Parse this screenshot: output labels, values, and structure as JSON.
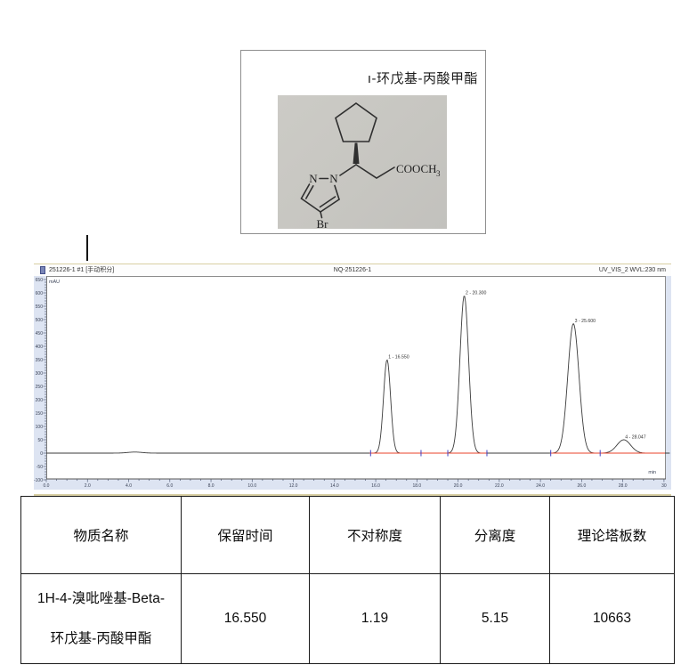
{
  "structure_box": {
    "title": "ı-环戊基-丙酸甲酯",
    "atoms": {
      "n1": "N",
      "n2": "N",
      "br": "Br",
      "ester": "COOCH",
      "ester_sub": "3"
    }
  },
  "chromatogram": {
    "header": {
      "left": "251226-1 #1 [手动积分]",
      "center": "NQ-251226-1",
      "right": "UV_VIS_2 WVL:230 nm"
    },
    "y_axis_label": "mAU",
    "x_axis_label": "min"
  },
  "chart_data": {
    "type": "line",
    "title": "NQ-251226-1",
    "xlabel": "min",
    "ylabel": "mAU",
    "xlim": [
      0,
      30.3
    ],
    "ylim": [
      -100,
      675
    ],
    "x_tick_step_min": 2,
    "x_minor_step_min": 0.5,
    "x_tick_labels": [
      "0.0",
      "2.0",
      "4.0",
      "6.0",
      "8.0",
      "10.0",
      "12.0",
      "14.0",
      "16.0",
      "18.0",
      "20.0",
      "22.0",
      "24.0",
      "26.0",
      "28.0",
      "30"
    ],
    "y_tick_step": 50,
    "y_minor_step": 10,
    "peaks": [
      {
        "index": 1,
        "label": "1 - 16.550",
        "retention_min": 16.55,
        "height_mAU": 350,
        "sigma_min": 0.17
      },
      {
        "index": 2,
        "label": "2 - 20.300",
        "retention_min": 20.3,
        "height_mAU": 590,
        "sigma_min": 0.21
      },
      {
        "index": 3,
        "label": "3 - 25.600",
        "retention_min": 25.6,
        "height_mAU": 485,
        "sigma_min": 0.27
      },
      {
        "index": 4,
        "label": "4 - 28.047",
        "retention_min": 28.047,
        "height_mAU": 50,
        "sigma_min": 0.33
      }
    ],
    "baseline_mAU": 0,
    "noise_bump": {
      "center_min": 4.3,
      "height_mAU": 4,
      "sigma_min": 0.35
    },
    "integration_segments_min": [
      [
        15.7,
        21.4
      ],
      [
        24.5,
        30.2
      ]
    ],
    "integration_marks_min": [
      15.75,
      18.2,
      19.5,
      21.4,
      24.5,
      26.9
    ],
    "legend": null,
    "grid": false
  },
  "colors": {
    "trace": "#3b3b3b",
    "integration_baseline": "#e8402a",
    "integration_mark": "#4040c0",
    "axis_strip": "#dde4f2",
    "chart_border_tan": "#d9cfa3",
    "plot_border_gray": "#8c8c8c"
  },
  "table": {
    "headers": [
      "物质名称",
      "保留时间",
      "不对称度",
      "分离度",
      "理论塔板数"
    ],
    "row": {
      "substance_lines": [
        "1H-4-溴吡唑基-Beta-",
        "环戊基-丙酸甲酯"
      ],
      "retention_time": "16.550",
      "asymmetry": "1.19",
      "resolution": "5.15",
      "plates": "10663"
    }
  }
}
